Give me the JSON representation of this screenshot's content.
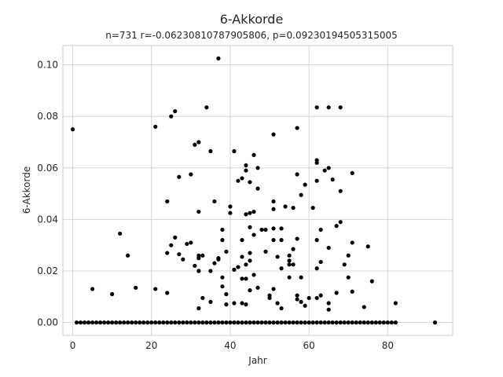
{
  "chart_data": {
    "type": "scatter",
    "title": "6-Akkorde",
    "subtitle": "n=731 r=-0.06230810787905806, p=0.09230194505315005",
    "xlabel": "Jahr",
    "ylabel": "6-Akkorde",
    "xlim": [
      -2.5,
      96.5
    ],
    "ylim": [
      -0.005,
      0.1075
    ],
    "xticks": [
      0,
      20,
      40,
      60,
      80
    ],
    "yticks": [
      0.0,
      0.02,
      0.04,
      0.06,
      0.08,
      0.1
    ],
    "xtick_labels": [
      "0",
      "20",
      "40",
      "60",
      "80"
    ],
    "ytick_labels": [
      "0.00",
      "0.02",
      "0.04",
      "0.06",
      "0.08",
      "0.10"
    ],
    "grid": true,
    "marker_color": "#000000",
    "zero_line_range": [
      1,
      82
    ],
    "points": [
      [
        0,
        0.075
      ],
      [
        5,
        0.013
      ],
      [
        10,
        0.011
      ],
      [
        12,
        0.0345
      ],
      [
        14,
        0.026
      ],
      [
        16,
        0.0135
      ],
      [
        21,
        0.076
      ],
      [
        21,
        0.013
      ],
      [
        24,
        0.047
      ],
      [
        24,
        0.0115
      ],
      [
        24,
        0.027
      ],
      [
        25,
        0.08
      ],
      [
        25,
        0.03
      ],
      [
        26,
        0.082
      ],
      [
        26,
        0.033
      ],
      [
        27,
        0.0565
      ],
      [
        27,
        0.0265
      ],
      [
        28,
        0.0245
      ],
      [
        29,
        0.0305
      ],
      [
        30,
        0.0575
      ],
      [
        30,
        0.031
      ],
      [
        31,
        0.069
      ],
      [
        31,
        0.022
      ],
      [
        32,
        0.07
      ],
      [
        32,
        0.043
      ],
      [
        32,
        0.026
      ],
      [
        32,
        0.025
      ],
      [
        32,
        0.02
      ],
      [
        32,
        0.0055
      ],
      [
        33,
        0.0095
      ],
      [
        33,
        0.026
      ],
      [
        34,
        0.0835
      ],
      [
        35,
        0.0665
      ],
      [
        35,
        0.02
      ],
      [
        35,
        0.008
      ],
      [
        36,
        0.047
      ],
      [
        36,
        0.023
      ],
      [
        37,
        0.1025
      ],
      [
        37,
        0.025
      ],
      [
        37,
        0.0245
      ],
      [
        38,
        0.036
      ],
      [
        38,
        0.032
      ],
      [
        38,
        0.0175
      ],
      [
        38,
        0.014
      ],
      [
        39,
        0.0275
      ],
      [
        39,
        0.011
      ],
      [
        39,
        0.007
      ],
      [
        40,
        0.045
      ],
      [
        40,
        0.0425
      ],
      [
        41,
        0.0665
      ],
      [
        41,
        0.0205
      ],
      [
        41,
        0.0075
      ],
      [
        42,
        0.055
      ],
      [
        42,
        0.0215
      ],
      [
        43,
        0.056
      ],
      [
        43,
        0.032
      ],
      [
        43,
        0.0255
      ],
      [
        43,
        0.017
      ],
      [
        43,
        0.0075
      ],
      [
        44,
        0.061
      ],
      [
        44,
        0.059
      ],
      [
        44,
        0.042
      ],
      [
        44,
        0.0225
      ],
      [
        44,
        0.017
      ],
      [
        44,
        0.007
      ],
      [
        45,
        0.0545
      ],
      [
        45,
        0.0425
      ],
      [
        45,
        0.037
      ],
      [
        45,
        0.027
      ],
      [
        45,
        0.024
      ],
      [
        45,
        0.0125
      ],
      [
        46,
        0.065
      ],
      [
        46,
        0.043
      ],
      [
        46,
        0.034
      ],
      [
        46,
        0.0185
      ],
      [
        47,
        0.06
      ],
      [
        47,
        0.052
      ],
      [
        47,
        0.0135
      ],
      [
        48,
        0.036
      ],
      [
        49,
        0.036
      ],
      [
        49,
        0.0275
      ],
      [
        50,
        0.0105
      ],
      [
        50,
        0.0095
      ],
      [
        51,
        0.073
      ],
      [
        51,
        0.047
      ],
      [
        51,
        0.044
      ],
      [
        51,
        0.0365
      ],
      [
        51,
        0.032
      ],
      [
        51,
        0.013
      ],
      [
        52,
        0.0075
      ],
      [
        52,
        0.0255
      ],
      [
        53,
        0.0365
      ],
      [
        53,
        0.032
      ],
      [
        53,
        0.021
      ],
      [
        53,
        0.0055
      ],
      [
        54,
        0.045
      ],
      [
        55,
        0.026
      ],
      [
        55,
        0.024
      ],
      [
        55,
        0.0225
      ],
      [
        55,
        0.0175
      ],
      [
        56,
        0.0445
      ],
      [
        56,
        0.0285
      ],
      [
        56,
        0.0225
      ],
      [
        57,
        0.0755
      ],
      [
        57,
        0.0575
      ],
      [
        57,
        0.0325
      ],
      [
        57,
        0.0105
      ],
      [
        57,
        0.009
      ],
      [
        58,
        0.0495
      ],
      [
        58,
        0.0175
      ],
      [
        58,
        0.008
      ],
      [
        59,
        0.0535
      ],
      [
        59,
        0.0065
      ],
      [
        60,
        0.0095
      ],
      [
        61,
        0.0445
      ],
      [
        62,
        0.0835
      ],
      [
        62,
        0.063
      ],
      [
        62,
        0.062
      ],
      [
        62,
        0.055
      ],
      [
        62,
        0.032
      ],
      [
        62,
        0.021
      ],
      [
        62,
        0.0095
      ],
      [
        63,
        0.036
      ],
      [
        63,
        0.0235
      ],
      [
        63,
        0.0105
      ],
      [
        64,
        0.059
      ],
      [
        65,
        0.0835
      ],
      [
        65,
        0.06
      ],
      [
        65,
        0.029
      ],
      [
        65,
        0.0075
      ],
      [
        65,
        0.005
      ],
      [
        66,
        0.0555
      ],
      [
        67,
        0.0375
      ],
      [
        67,
        0.0115
      ],
      [
        68,
        0.0835
      ],
      [
        68,
        0.051
      ],
      [
        68,
        0.039
      ],
      [
        69,
        0.0225
      ],
      [
        70,
        0.026
      ],
      [
        70,
        0.0175
      ],
      [
        71,
        0.058
      ],
      [
        71,
        0.031
      ],
      [
        71,
        0.012
      ],
      [
        74,
        0.006
      ],
      [
        75,
        0.0295
      ],
      [
        76,
        0.016
      ],
      [
        82,
        0.0075
      ],
      [
        92,
        0.0
      ]
    ]
  }
}
